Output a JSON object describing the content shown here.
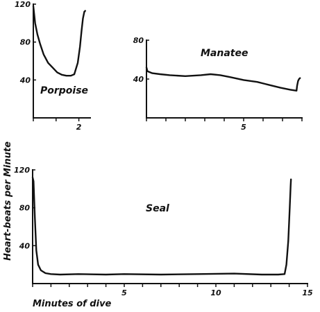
{
  "ylabel": "Heart-beats per Minute",
  "xlabel": "Minutes of dive",
  "chart_data": [
    {
      "type": "line",
      "title": "Porpoise",
      "xlim": [
        0,
        2.5
      ],
      "ylim": [
        0,
        120
      ],
      "xticks": [
        0,
        1,
        2
      ],
      "xticklabels": [
        "",
        "",
        "2"
      ],
      "yticks": [
        40,
        80,
        120
      ],
      "yticklabels": [
        "40",
        "80",
        "120"
      ],
      "series": [
        {
          "x": [
            0,
            0.08,
            0.18,
            0.3,
            0.45,
            0.65,
            0.85,
            1.05,
            1.25,
            1.45,
            1.65,
            1.8,
            1.95,
            2.05,
            2.12,
            2.18,
            2.24,
            2.28
          ],
          "y": [
            118,
            100,
            88,
            78,
            67,
            58,
            53,
            48,
            45.5,
            44.5,
            44.5,
            46,
            58,
            75,
            92,
            105,
            112,
            113
          ]
        }
      ]
    },
    {
      "type": "line",
      "title": "Manatee",
      "xlim": [
        0,
        8
      ],
      "ylim": [
        0,
        80
      ],
      "xticks": [
        0,
        1,
        2,
        3,
        4,
        5,
        6,
        7,
        8
      ],
      "xticklabels": [
        "",
        "",
        "",
        "",
        "",
        "5",
        "",
        "",
        ""
      ],
      "yticks": [
        40,
        80
      ],
      "yticklabels": [
        "40",
        "80"
      ],
      "series": [
        {
          "x": [
            0,
            0.05,
            0.3,
            0.7,
            1.2,
            2.0,
            2.8,
            3.3,
            3.8,
            4.3,
            5.0,
            5.7,
            6.3,
            6.9,
            7.4,
            7.72,
            7.75,
            7.8,
            7.85,
            7.9
          ],
          "y": [
            52,
            48,
            46,
            45,
            44,
            43,
            44,
            45,
            44,
            42,
            39,
            37,
            34,
            31,
            29,
            28,
            33,
            38,
            40,
            41
          ]
        }
      ]
    },
    {
      "type": "line",
      "title": "Seal",
      "xlim": [
        0,
        15
      ],
      "ylim": [
        0,
        120
      ],
      "xticks": [
        0,
        1,
        2,
        3,
        4,
        5,
        6,
        7,
        8,
        9,
        10,
        11,
        12,
        13,
        14,
        15
      ],
      "xticklabels": [
        "",
        "",
        "",
        "",
        "",
        "5",
        "",
        "",
        "",
        "",
        "10",
        "",
        "",
        "",
        "",
        "15"
      ],
      "yticks": [
        40,
        80,
        120
      ],
      "yticklabels": [
        "40",
        "80",
        "120"
      ],
      "series": [
        {
          "x": [
            0,
            0.05,
            0.12,
            0.2,
            0.3,
            0.45,
            0.7,
            1.0,
            1.5,
            2.5,
            4,
            5,
            7,
            9,
            11,
            12.5,
            13.4,
            13.75,
            13.85,
            13.95,
            14.03,
            14.08,
            14.1
          ],
          "y": [
            112,
            108,
            70,
            35,
            20,
            14,
            11,
            10,
            9.5,
            10,
            9.5,
            10,
            9.5,
            10,
            10.5,
            9.5,
            9.5,
            10,
            20,
            45,
            80,
            103,
            110
          ]
        }
      ]
    }
  ]
}
